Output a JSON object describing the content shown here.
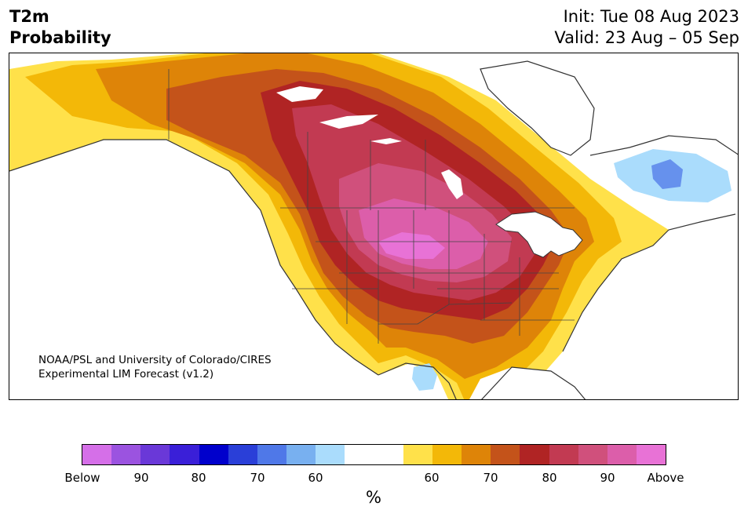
{
  "title": {
    "left_line1": "T2m",
    "left_line2": "Probability",
    "right_line1": "Init: Tue 08 Aug 2023",
    "right_line2": "Valid: 23 Aug – 05 Sep"
  },
  "credit": {
    "line1": "NOAA/PSL and University of Colorado/CIRES",
    "line2": "Experimental LIM Forecast (v1.2)"
  },
  "colorbar": {
    "colors": [
      "#d56fe8",
      "#9b53e0",
      "#6a38d8",
      "#3a1fd8",
      "#0000cc",
      "#2a3fd8",
      "#4f78e8",
      "#78b0f0",
      "#aadcfc",
      "#ffffff",
      "#ffffff",
      "#ffe14a",
      "#f3b808",
      "#de8408",
      "#c4531a",
      "#b02424",
      "#c23a52",
      "#d0507c",
      "#dc5eaa",
      "#e872d6"
    ],
    "tick_labels": [
      "Below",
      "90",
      "80",
      "70",
      "60",
      "60",
      "70",
      "80",
      "90",
      "Above"
    ],
    "unit": "%"
  }
}
